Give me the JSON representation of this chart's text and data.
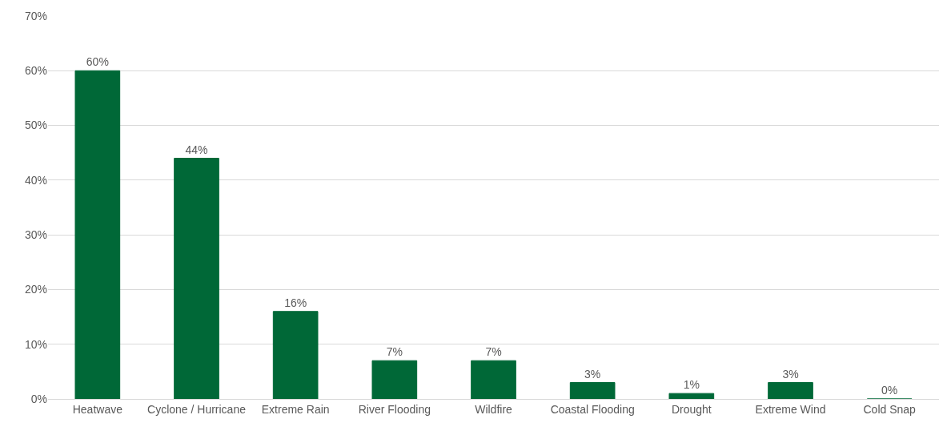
{
  "chart_data": {
    "type": "bar",
    "categories": [
      "Heatwave",
      "Cyclone / Hurricane",
      "Extreme Rain",
      "River Flooding",
      "Wildfire",
      "Coastal Flooding",
      "Drought",
      "Extreme Wind",
      "Cold Snap"
    ],
    "values": [
      60,
      44,
      16,
      7,
      7,
      3,
      1,
      3,
      0
    ],
    "color": "#006837",
    "ylim": [
      0,
      70
    ],
    "yticks": [
      {
        "value": 0,
        "label": "0%"
      },
      {
        "value": 10,
        "label": "10%"
      },
      {
        "value": 20,
        "label": "20%"
      },
      {
        "value": 30,
        "label": "30%"
      },
      {
        "value": 40,
        "label": "40%"
      },
      {
        "value": 50,
        "label": "50%"
      },
      {
        "value": 60,
        "label": "60%"
      },
      {
        "value": 70,
        "label": "70%"
      }
    ],
    "grid": "y",
    "value_labels": [
      "60%",
      "44%",
      "16%",
      "7%",
      "7%",
      "3%",
      "1%",
      "3%",
      "0%"
    ],
    "legend": false
  }
}
